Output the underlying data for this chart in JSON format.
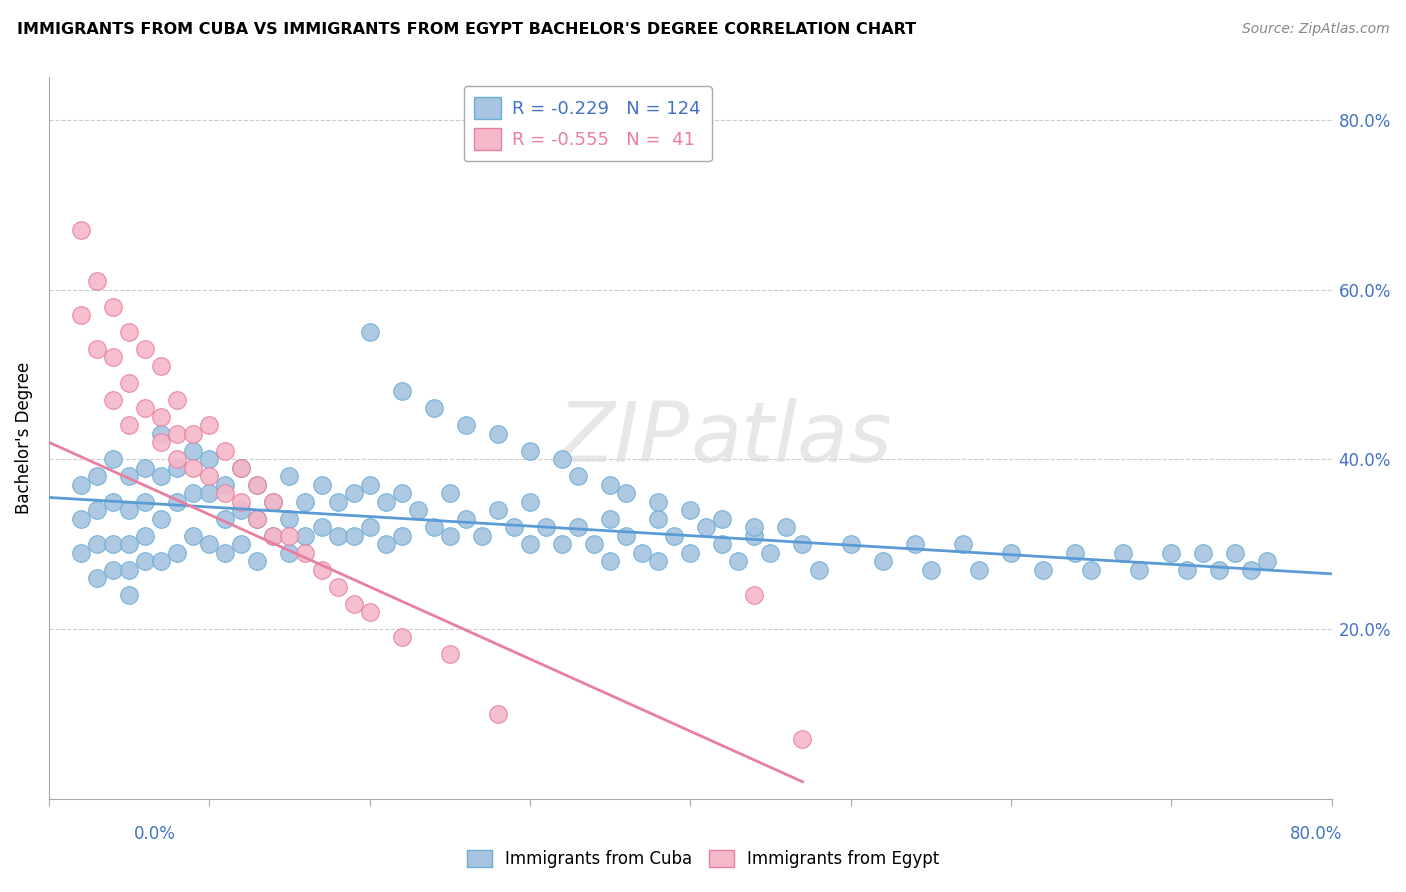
{
  "title": "IMMIGRANTS FROM CUBA VS IMMIGRANTS FROM EGYPT BACHELOR'S DEGREE CORRELATION CHART",
  "source": "Source: ZipAtlas.com",
  "ylabel": "Bachelor's Degree",
  "xlim": [
    0.0,
    0.8
  ],
  "ylim": [
    0.0,
    0.85
  ],
  "cuba_color": "#a8c4e0",
  "cuba_edge_color": "#6aaed6",
  "egypt_color": "#f4b8c8",
  "egypt_edge_color": "#e87fa0",
  "cuba_line_color": "#5b9bd5",
  "egypt_line_color": "#e87fa0",
  "legend_cuba": "R = -0.229   N = 124",
  "legend_egypt": "R = -0.555   N =  41",
  "cuba_x": [
    0.02,
    0.02,
    0.02,
    0.03,
    0.03,
    0.03,
    0.03,
    0.04,
    0.04,
    0.04,
    0.04,
    0.05,
    0.05,
    0.05,
    0.05,
    0.05,
    0.06,
    0.06,
    0.06,
    0.06,
    0.07,
    0.07,
    0.07,
    0.07,
    0.08,
    0.08,
    0.08,
    0.09,
    0.09,
    0.09,
    0.1,
    0.1,
    0.1,
    0.11,
    0.11,
    0.11,
    0.12,
    0.12,
    0.12,
    0.13,
    0.13,
    0.13,
    0.14,
    0.14,
    0.15,
    0.15,
    0.15,
    0.16,
    0.16,
    0.17,
    0.17,
    0.18,
    0.18,
    0.19,
    0.19,
    0.2,
    0.2,
    0.21,
    0.21,
    0.22,
    0.22,
    0.23,
    0.24,
    0.25,
    0.25,
    0.26,
    0.27,
    0.28,
    0.29,
    0.3,
    0.3,
    0.31,
    0.32,
    0.33,
    0.34,
    0.35,
    0.35,
    0.36,
    0.37,
    0.38,
    0.38,
    0.39,
    0.4,
    0.41,
    0.42,
    0.43,
    0.44,
    0.45,
    0.46,
    0.47,
    0.48,
    0.5,
    0.52,
    0.54,
    0.55,
    0.57,
    0.58,
    0.6,
    0.62,
    0.64,
    0.65,
    0.67,
    0.68,
    0.7,
    0.71,
    0.72,
    0.73,
    0.74,
    0.75,
    0.76,
    0.2,
    0.22,
    0.24,
    0.26,
    0.28,
    0.3,
    0.32,
    0.33,
    0.35,
    0.36,
    0.38,
    0.4,
    0.42,
    0.44
  ],
  "cuba_y": [
    0.37,
    0.33,
    0.29,
    0.38,
    0.34,
    0.3,
    0.26,
    0.4,
    0.35,
    0.3,
    0.27,
    0.38,
    0.34,
    0.3,
    0.27,
    0.24,
    0.39,
    0.35,
    0.31,
    0.28,
    0.43,
    0.38,
    0.33,
    0.28,
    0.39,
    0.35,
    0.29,
    0.41,
    0.36,
    0.31,
    0.4,
    0.36,
    0.3,
    0.37,
    0.33,
    0.29,
    0.39,
    0.34,
    0.3,
    0.37,
    0.33,
    0.28,
    0.35,
    0.31,
    0.38,
    0.33,
    0.29,
    0.35,
    0.31,
    0.37,
    0.32,
    0.35,
    0.31,
    0.36,
    0.31,
    0.37,
    0.32,
    0.35,
    0.3,
    0.36,
    0.31,
    0.34,
    0.32,
    0.36,
    0.31,
    0.33,
    0.31,
    0.34,
    0.32,
    0.35,
    0.3,
    0.32,
    0.3,
    0.32,
    0.3,
    0.33,
    0.28,
    0.31,
    0.29,
    0.33,
    0.28,
    0.31,
    0.29,
    0.32,
    0.3,
    0.28,
    0.31,
    0.29,
    0.32,
    0.3,
    0.27,
    0.3,
    0.28,
    0.3,
    0.27,
    0.3,
    0.27,
    0.29,
    0.27,
    0.29,
    0.27,
    0.29,
    0.27,
    0.29,
    0.27,
    0.29,
    0.27,
    0.29,
    0.27,
    0.28,
    0.55,
    0.48,
    0.46,
    0.44,
    0.43,
    0.41,
    0.4,
    0.38,
    0.37,
    0.36,
    0.35,
    0.34,
    0.33,
    0.32
  ],
  "egypt_x": [
    0.02,
    0.02,
    0.03,
    0.03,
    0.04,
    0.04,
    0.04,
    0.05,
    0.05,
    0.05,
    0.06,
    0.06,
    0.07,
    0.07,
    0.07,
    0.08,
    0.08,
    0.08,
    0.09,
    0.09,
    0.1,
    0.1,
    0.11,
    0.11,
    0.12,
    0.12,
    0.13,
    0.13,
    0.14,
    0.14,
    0.15,
    0.16,
    0.17,
    0.18,
    0.19,
    0.2,
    0.22,
    0.25,
    0.28,
    0.44,
    0.47
  ],
  "egypt_y": [
    0.67,
    0.57,
    0.61,
    0.53,
    0.58,
    0.52,
    0.47,
    0.55,
    0.49,
    0.44,
    0.53,
    0.46,
    0.51,
    0.45,
    0.42,
    0.47,
    0.43,
    0.4,
    0.43,
    0.39,
    0.44,
    0.38,
    0.41,
    0.36,
    0.39,
    0.35,
    0.37,
    0.33,
    0.35,
    0.31,
    0.31,
    0.29,
    0.27,
    0.25,
    0.23,
    0.22,
    0.19,
    0.17,
    0.1,
    0.24,
    0.07
  ]
}
